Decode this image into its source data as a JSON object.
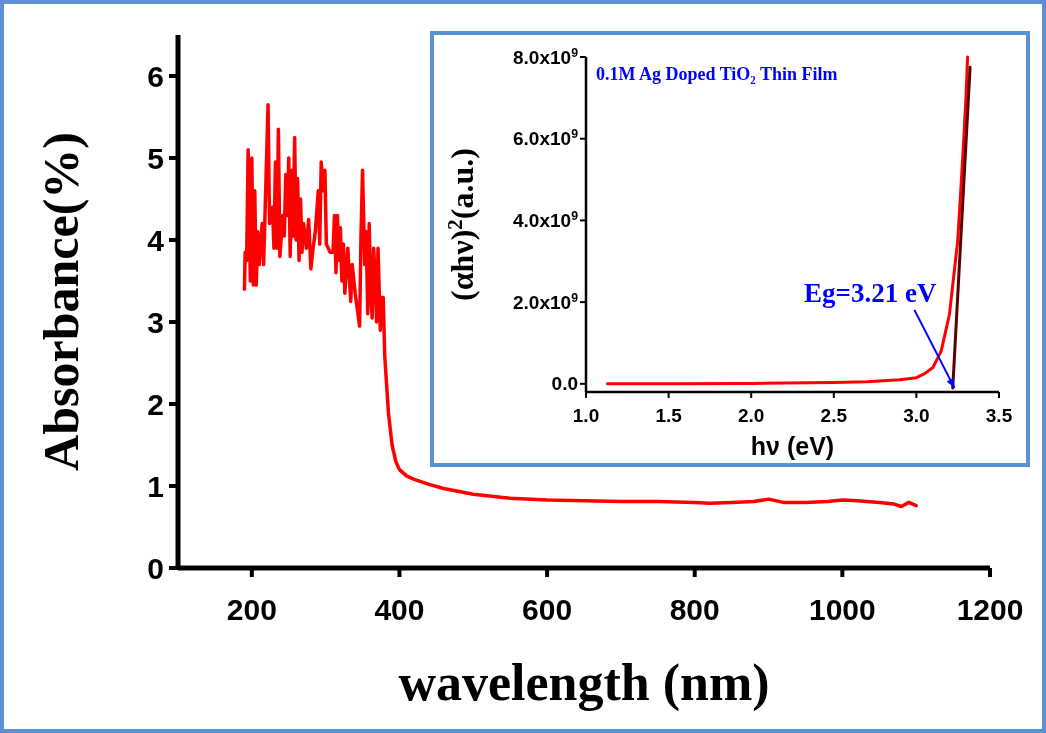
{
  "chart_data": [
    {
      "type": "line",
      "xlabel": "wavelength (nm)",
      "ylabel": "Absorbance(%)",
      "xlim": [
        100,
        1200
      ],
      "ylim": [
        0,
        6.5
      ],
      "xticks": [
        200,
        400,
        600,
        800,
        1000,
        1200
      ],
      "yticks": [
        0,
        1,
        2,
        3,
        4,
        5,
        6
      ],
      "series": [
        {
          "color": "#ff0000",
          "x": [
            190,
            191,
            193,
            195,
            198,
            200,
            202,
            204,
            206,
            208,
            210,
            214,
            216,
            222,
            224,
            228,
            230,
            232,
            234,
            236,
            238,
            242,
            244,
            246,
            248,
            250,
            252,
            254,
            256,
            258,
            260,
            262,
            264,
            266,
            268,
            270,
            274,
            277,
            280,
            283,
            286,
            290,
            292,
            294,
            297,
            299,
            301,
            306,
            310,
            312,
            314,
            316,
            318,
            320,
            322,
            324,
            326,
            330,
            334,
            336,
            340,
            346,
            348,
            350,
            353,
            355,
            357,
            359,
            361,
            363,
            365,
            367,
            369,
            371,
            374,
            376,
            378,
            380,
            385,
            390,
            395,
            400,
            410,
            420,
            440,
            460,
            500,
            550,
            600,
            650,
            700,
            750,
            800,
            820,
            850,
            880,
            900,
            920,
            950,
            980,
            1000,
            1020,
            1050,
            1070,
            1080,
            1090,
            1100
          ],
          "values": [
            3.4,
            3.85,
            3.75,
            5.1,
            3.5,
            5.0,
            3.45,
            4.6,
            3.45,
            4.1,
            3.7,
            4.2,
            3.7,
            5.65,
            4.2,
            4.4,
            3.9,
            4.95,
            3.9,
            5.35,
            3.8,
            4.3,
            4.05,
            4.8,
            4.3,
            5.0,
            3.8,
            4.85,
            4.05,
            5.25,
            4.0,
            4.75,
            3.75,
            4.5,
            3.85,
            4.2,
            3.9,
            4.25,
            3.65,
            3.9,
            4.1,
            4.6,
            3.95,
            4.95,
            4.6,
            4.85,
            3.95,
            3.85,
            3.85,
            4.3,
            3.6,
            4.3,
            3.75,
            4.15,
            3.5,
            3.95,
            3.35,
            3.9,
            3.25,
            3.7,
            3.35,
            2.95,
            4.1,
            4.85,
            3.7,
            4.1,
            3.1,
            4.2,
            3.4,
            3.05,
            3.9,
            3.6,
            3.0,
            3.9,
            2.9,
            3.3,
            3.3,
            2.6,
            1.9,
            1.5,
            1.3,
            1.2,
            1.12,
            1.08,
            1.02,
            0.97,
            0.9,
            0.85,
            0.83,
            0.82,
            0.81,
            0.81,
            0.8,
            0.79,
            0.8,
            0.81,
            0.84,
            0.8,
            0.8,
            0.81,
            0.83,
            0.82,
            0.8,
            0.78,
            0.75,
            0.8,
            0.76
          ]
        }
      ]
    },
    {
      "type": "line",
      "title": "0.1M Ag Doped TiO₂ Thin Film",
      "xlabel": "hν (eV)",
      "ylabel": "(αhν)$^{2}$(a.u.)",
      "xlim": [
        1.0,
        3.5
      ],
      "ylim": [
        -200000000,
        8000000000
      ],
      "xticks": [
        {
          "value": 1.0,
          "label": "1.0"
        },
        1.5,
        {
          "value": 2.0,
          "label": "2.0"
        },
        2.5,
        {
          "value": 3.0,
          "label": "3.0"
        },
        3.5
      ],
      "yticks": [
        {
          "value": 0,
          "label": "0.0"
        },
        {
          "value": 2000000000,
          "label": "2.0x10$^{9}$"
        },
        {
          "value": 4000000000,
          "label": "4.0x10$^{9}$"
        },
        {
          "value": 6000000000,
          "label": "6.0x10$^{9}$"
        },
        {
          "value": 8000000000,
          "label": "8.0x10$^{9}$"
        }
      ],
      "series": [
        {
          "color": "#ff0000",
          "x": [
            1.13,
            1.5,
            2.0,
            2.5,
            2.7,
            2.9,
            3.0,
            3.05,
            3.1,
            3.15,
            3.2,
            3.25,
            3.28,
            3.3,
            3.31
          ],
          "values": [
            0,
            0,
            10000000,
            30000000,
            50000000,
            100000000,
            150000000,
            250000000,
            400000000,
            800000000,
            1700000000,
            3500000000,
            5500000000,
            7000000000,
            8000000000
          ]
        },
        {
          "color": "#5a0000",
          "x": [
            3.22,
            3.325
          ],
          "values": [
            -100000000,
            7750000000
          ]
        }
      ],
      "annotations": [
        {
          "text": "Eg=3.21 eV",
          "x": 3.23,
          "y": -100000000
        }
      ]
    }
  ]
}
